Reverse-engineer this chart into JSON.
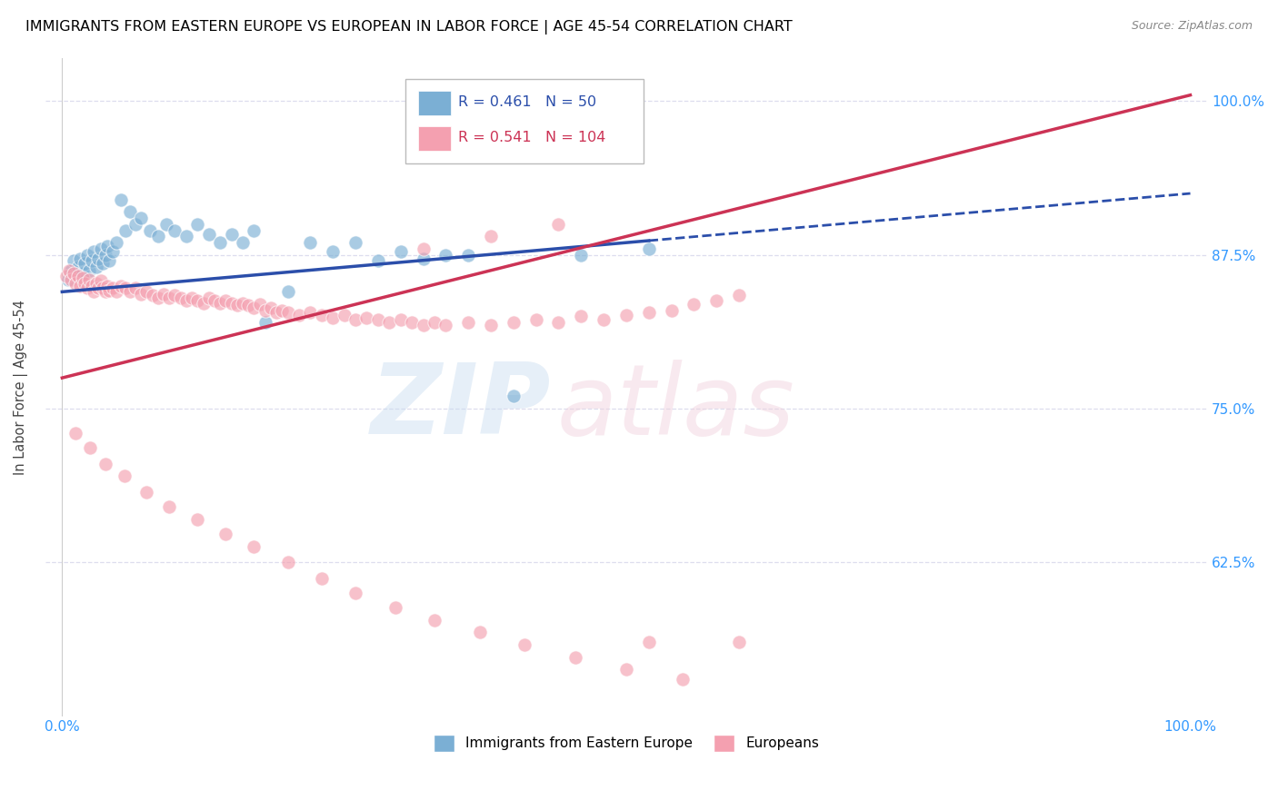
{
  "title": "IMMIGRANTS FROM EASTERN EUROPE VS EUROPEAN IN LABOR FORCE | AGE 45-54 CORRELATION CHART",
  "source": "Source: ZipAtlas.com",
  "ylabel": "In Labor Force | Age 45-54",
  "legend_blue_label": "Immigrants from Eastern Europe",
  "legend_pink_label": "Europeans",
  "R_blue": 0.461,
  "N_blue": 50,
  "R_pink": 0.541,
  "N_pink": 104,
  "blue_color": "#7BAFD4",
  "pink_color": "#F4A0B0",
  "blue_line_color": "#2B4EAA",
  "pink_line_color": "#CC3355",
  "tick_color": "#3399FF",
  "ylabel_color": "#444444",
  "source_color": "#888888",
  "grid_color": "#DDDDEE",
  "blue_scatter_x": [
    0.005,
    0.008,
    0.01,
    0.012,
    0.014,
    0.016,
    0.018,
    0.02,
    0.022,
    0.024,
    0.026,
    0.028,
    0.03,
    0.032,
    0.034,
    0.036,
    0.038,
    0.04,
    0.042,
    0.045,
    0.048,
    0.052,
    0.056,
    0.06,
    0.065,
    0.07,
    0.078,
    0.085,
    0.092,
    0.1,
    0.11,
    0.12,
    0.13,
    0.14,
    0.15,
    0.16,
    0.17,
    0.18,
    0.2,
    0.22,
    0.24,
    0.26,
    0.28,
    0.3,
    0.32,
    0.34,
    0.36,
    0.4,
    0.46,
    0.52
  ],
  "blue_scatter_y": [
    0.855,
    0.862,
    0.87,
    0.858,
    0.865,
    0.872,
    0.86,
    0.868,
    0.875,
    0.862,
    0.87,
    0.878,
    0.865,
    0.872,
    0.88,
    0.868,
    0.875,
    0.882,
    0.87,
    0.878,
    0.885,
    0.92,
    0.895,
    0.91,
    0.9,
    0.905,
    0.895,
    0.89,
    0.9,
    0.895,
    0.89,
    0.9,
    0.892,
    0.885,
    0.892,
    0.885,
    0.895,
    0.82,
    0.845,
    0.885,
    0.878,
    0.885,
    0.87,
    0.878,
    0.872,
    0.875,
    0.875,
    0.76,
    0.875,
    0.88
  ],
  "pink_scatter_x": [
    0.004,
    0.006,
    0.008,
    0.01,
    0.012,
    0.014,
    0.016,
    0.018,
    0.02,
    0.022,
    0.024,
    0.026,
    0.028,
    0.03,
    0.032,
    0.034,
    0.036,
    0.038,
    0.04,
    0.042,
    0.045,
    0.048,
    0.052,
    0.056,
    0.06,
    0.065,
    0.07,
    0.075,
    0.08,
    0.085,
    0.09,
    0.095,
    0.1,
    0.105,
    0.11,
    0.115,
    0.12,
    0.125,
    0.13,
    0.135,
    0.14,
    0.145,
    0.15,
    0.155,
    0.16,
    0.165,
    0.17,
    0.175,
    0.18,
    0.185,
    0.19,
    0.195,
    0.2,
    0.21,
    0.22,
    0.23,
    0.24,
    0.25,
    0.26,
    0.27,
    0.28,
    0.29,
    0.3,
    0.31,
    0.32,
    0.33,
    0.34,
    0.36,
    0.38,
    0.4,
    0.42,
    0.44,
    0.46,
    0.48,
    0.5,
    0.52,
    0.54,
    0.56,
    0.58,
    0.6,
    0.012,
    0.025,
    0.038,
    0.055,
    0.075,
    0.095,
    0.12,
    0.145,
    0.17,
    0.2,
    0.23,
    0.26,
    0.295,
    0.33,
    0.37,
    0.41,
    0.455,
    0.5,
    0.55,
    0.6,
    0.32,
    0.38,
    0.44,
    0.52
  ],
  "pink_scatter_y": [
    0.858,
    0.862,
    0.855,
    0.86,
    0.852,
    0.858,
    0.85,
    0.856,
    0.852,
    0.848,
    0.855,
    0.85,
    0.845,
    0.852,
    0.848,
    0.854,
    0.848,
    0.845,
    0.85,
    0.846,
    0.848,
    0.845,
    0.85,
    0.848,
    0.845,
    0.848,
    0.843,
    0.845,
    0.842,
    0.84,
    0.843,
    0.84,
    0.842,
    0.84,
    0.838,
    0.84,
    0.838,
    0.836,
    0.84,
    0.838,
    0.836,
    0.838,
    0.836,
    0.834,
    0.836,
    0.834,
    0.832,
    0.835,
    0.83,
    0.832,
    0.828,
    0.83,
    0.828,
    0.826,
    0.828,
    0.826,
    0.824,
    0.826,
    0.822,
    0.824,
    0.822,
    0.82,
    0.822,
    0.82,
    0.818,
    0.82,
    0.818,
    0.82,
    0.818,
    0.82,
    0.822,
    0.82,
    0.825,
    0.822,
    0.826,
    0.828,
    0.83,
    0.835,
    0.838,
    0.842,
    0.73,
    0.718,
    0.705,
    0.695,
    0.682,
    0.67,
    0.66,
    0.648,
    0.638,
    0.625,
    0.612,
    0.6,
    0.588,
    0.578,
    0.568,
    0.558,
    0.548,
    0.538,
    0.53,
    0.56,
    0.88,
    0.89,
    0.9,
    0.56
  ]
}
